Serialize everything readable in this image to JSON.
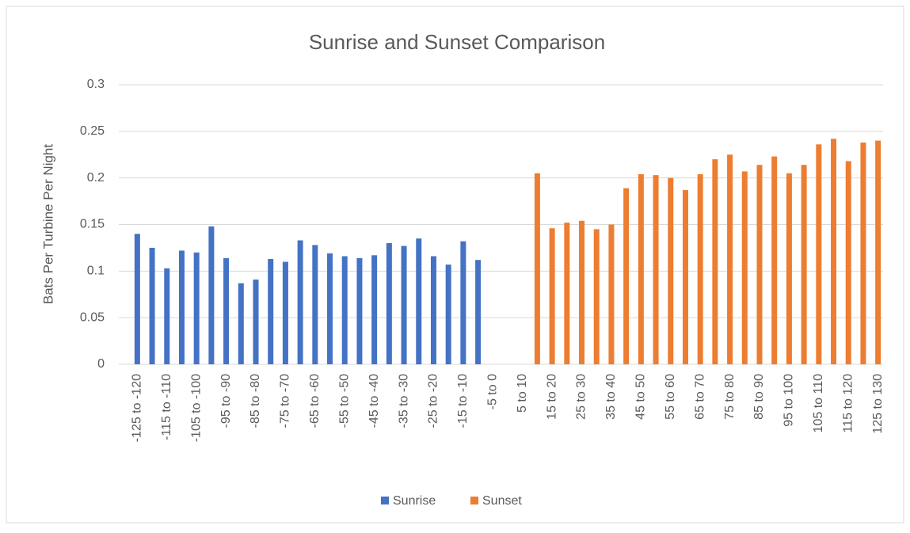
{
  "chart_data": {
    "type": "bar",
    "title": "Sunrise and Sunset Comparison",
    "y_label": "Bats Per Turbine Per Night",
    "categories": [
      "-125 to -120",
      null,
      "-115 to -110",
      null,
      "-105 to -100",
      null,
      "-95 to -90",
      null,
      "-85 to -80",
      null,
      "-75 to -70",
      null,
      "-65 to -60",
      null,
      "-55 to -50",
      null,
      "-45 to -40",
      null,
      "-35 to -30",
      null,
      "-25 to -20",
      null,
      "-15 to -10",
      null,
      "-5 to 0",
      null,
      "5 to 10",
      null,
      "15 to 20",
      null,
      "25 to 30",
      null,
      "35 to 40",
      null,
      "45 to 50",
      null,
      "55 to 60",
      null,
      "65 to 70",
      null,
      "75 to 80",
      null,
      "85 to 90",
      null,
      "95 to 100",
      null,
      "105 to 110",
      null,
      "115 to 120",
      null,
      "125 to 130"
    ],
    "series": [
      {
        "name": "Sunrise",
        "color": "#4472c4",
        "values": [
          0.14,
          0.125,
          0.103,
          0.122,
          0.12,
          0.148,
          0.114,
          0.087,
          0.091,
          0.113,
          0.11,
          0.133,
          0.128,
          0.119,
          0.116,
          0.114,
          0.117,
          0.13,
          0.127,
          0.135,
          0.116,
          0.107,
          0.132,
          0.112,
          null,
          null,
          null,
          null,
          null,
          null,
          null,
          null,
          null,
          null,
          null,
          null,
          null,
          null,
          null,
          null,
          null,
          null,
          null,
          null,
          null,
          null,
          null,
          null,
          null,
          null,
          null
        ]
      },
      {
        "name": "Sunset",
        "color": "#ed7d31",
        "values": [
          null,
          null,
          null,
          null,
          null,
          null,
          null,
          null,
          null,
          null,
          null,
          null,
          null,
          null,
          null,
          null,
          null,
          null,
          null,
          null,
          null,
          null,
          null,
          null,
          null,
          null,
          null,
          0.205,
          0.146,
          0.152,
          0.154,
          0.145,
          0.15,
          0.189,
          0.204,
          0.203,
          0.2,
          0.187,
          0.204,
          0.22,
          0.225,
          0.207,
          0.214,
          0.223,
          0.205,
          0.214,
          0.236,
          0.242,
          0.218,
          0.238,
          0.24
        ]
      }
    ],
    "ylim": [
      0,
      0.3
    ],
    "yticks": [
      0,
      0.05,
      0.1,
      0.15,
      0.2,
      0.25,
      0.3
    ],
    "grid": true,
    "legend": "bottom"
  }
}
